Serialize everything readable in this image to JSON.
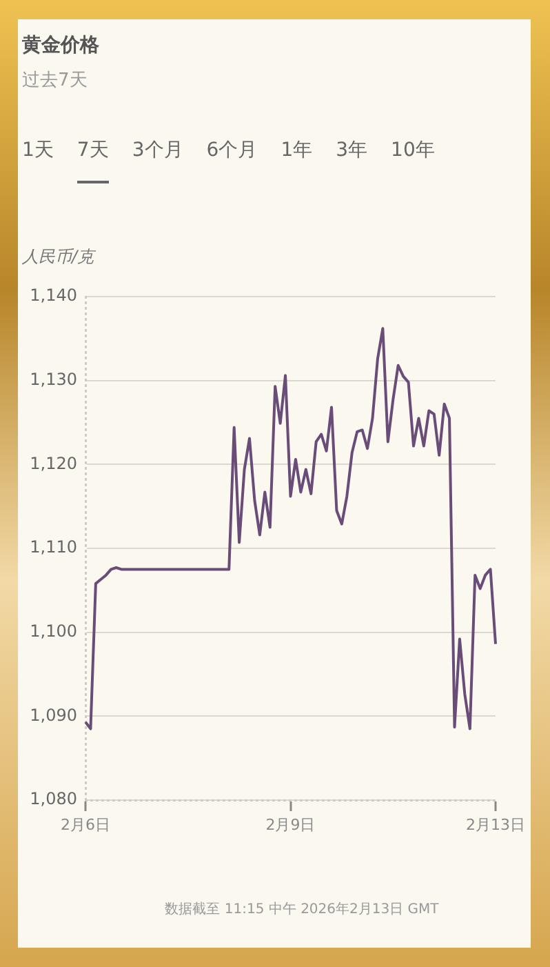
{
  "chart_data": {
    "type": "line",
    "title": "黄金价格",
    "subtitle": "过去7天",
    "ylabel": "人民币/克",
    "annotations": [
      "1天",
      "7天",
      "3个月",
      "6个月",
      "1年",
      "3年",
      "10年",
      "数据截至 11:15 中午 2026年2月13日 GMT"
    ],
    "categories": [
      "2月6日",
      null,
      null,
      null,
      null,
      null,
      null,
      null,
      null,
      null,
      null,
      null,
      null,
      null,
      null,
      null,
      null,
      null,
      null,
      null,
      null,
      null,
      null,
      null,
      null,
      null,
      null,
      null,
      null,
      null,
      null,
      null,
      null,
      null,
      null,
      null,
      null,
      null,
      null,
      null,
      "2月9日",
      null,
      null,
      null,
      null,
      null,
      null,
      null,
      null,
      null,
      null,
      null,
      null,
      null,
      null,
      null,
      null,
      null,
      null,
      null,
      null,
      null,
      null,
      null,
      null,
      null,
      null,
      null,
      null,
      null,
      null,
      null,
      null,
      null,
      null,
      null,
      null,
      null,
      null,
      null,
      "2月13日"
    ],
    "series": [
      {
        "color": "#6a4c78",
        "values": [
          1089.3,
          1088.5,
          1105.8,
          1106.3,
          1106.8,
          1107.5,
          1107.7,
          1107.5,
          1107.5,
          1107.5,
          1107.5,
          1107.5,
          1107.5,
          1107.5,
          1107.5,
          1107.5,
          1107.5,
          1107.5,
          1107.5,
          1107.5,
          1107.5,
          1107.5,
          1107.5,
          1107.5,
          1107.5,
          1107.5,
          1107.5,
          1107.5,
          1107.5,
          1124.4,
          1110.7,
          1119.4,
          1123.1,
          1115.7,
          1111.6,
          1116.7,
          1112.5,
          1129.3,
          1124.9,
          1130.6,
          1116.2,
          1120.6,
          1116.7,
          1119.4,
          1116.5,
          1122.7,
          1123.6,
          1121.6,
          1126.8,
          1114.5,
          1112.9,
          1116.2,
          1121.4,
          1123.9,
          1124.1,
          1121.9,
          1125.5,
          1132.6,
          1136.2,
          1122.7,
          1127.7,
          1131.8,
          1130.5,
          1129.8,
          1122.2,
          1125.5,
          1122.2,
          1126.4,
          1126,
          1121.1,
          1127.2,
          1125.5,
          1088.7,
          1099.2,
          1092.6,
          1088.5,
          1106.8,
          1105.2,
          1106.8,
          1107.5,
          1098.6
        ]
      }
    ],
    "ylim": [
      1080,
      1140
    ],
    "yticks": [
      {
        "value": 1080,
        "label": "1,080"
      },
      {
        "value": 1090,
        "label": "1,090"
      },
      {
        "value": 1100,
        "label": "1,100"
      },
      {
        "value": 1110,
        "label": "1,110"
      },
      {
        "value": 1120,
        "label": "1,120"
      },
      {
        "value": 1130,
        "label": "1,130"
      },
      {
        "value": 1140,
        "label": "1,140"
      }
    ],
    "grid": "y",
    "legend": false
  }
}
